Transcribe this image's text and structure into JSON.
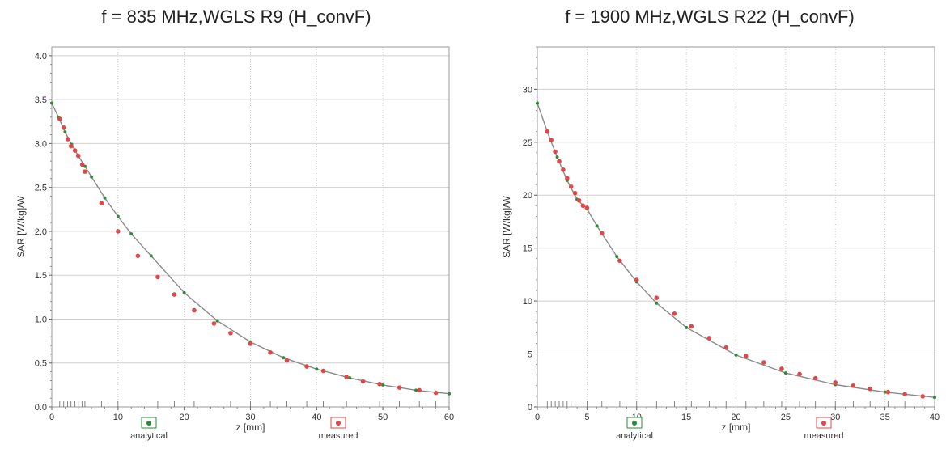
{
  "chart_data": [
    {
      "type": "scatter",
      "title": "f = 835 MHz,WGLS R9 (H_convF)",
      "xlabel": "z [mm]",
      "ylabel": "SAR [W/kg]/W",
      "xlim": [
        0,
        60
      ],
      "ylim": [
        0,
        4.1
      ],
      "x_ticks": [
        "0",
        "10",
        "20",
        "30",
        "40",
        "50",
        "60"
      ],
      "y_ticks": [
        "0.0",
        "0.5",
        "1.0",
        "1.5",
        "2.0",
        "2.5",
        "3.0",
        "3.5",
        "4.0"
      ],
      "grid": true,
      "legend_position": "bottom",
      "series": [
        {
          "name": "analytical",
          "color": "#2e8b3a",
          "x": [
            0,
            1,
            2,
            3,
            4,
            5,
            6,
            8,
            10,
            12,
            15,
            20,
            25,
            30,
            35,
            40,
            45,
            50,
            55,
            60
          ],
          "y": [
            3.46,
            3.3,
            3.13,
            2.99,
            2.86,
            2.74,
            2.62,
            2.38,
            2.17,
            1.97,
            1.72,
            1.3,
            0.98,
            0.74,
            0.56,
            0.43,
            0.33,
            0.25,
            0.19,
            0.15
          ]
        },
        {
          "name": "measured",
          "color": "#e04848",
          "x": [
            1.2,
            1.8,
            2.4,
            2.9,
            3.5,
            4.0,
            4.6,
            5.0,
            7.5,
            10.0,
            13.0,
            16.0,
            18.5,
            21.5,
            24.5,
            27.0,
            30.0,
            33.0,
            35.5,
            38.5,
            41.0,
            44.5,
            47.0,
            49.5,
            52.5,
            55.5,
            58.0
          ],
          "y": [
            3.28,
            3.18,
            3.05,
            2.97,
            2.92,
            2.86,
            2.76,
            2.68,
            2.32,
            2.0,
            1.72,
            1.48,
            1.28,
            1.1,
            0.95,
            0.84,
            0.72,
            0.62,
            0.53,
            0.46,
            0.41,
            0.34,
            0.29,
            0.26,
            0.22,
            0.19,
            0.16
          ]
        }
      ]
    },
    {
      "type": "scatter",
      "title": "f = 1900 MHz,WGLS R22 (H_convF)",
      "xlabel": "z [mm]",
      "ylabel": "SAR [W/kg]/W",
      "xlim": [
        0,
        40
      ],
      "ylim": [
        0,
        34
      ],
      "x_ticks": [
        "0",
        "5",
        "10",
        "15",
        "20",
        "25",
        "30",
        "35",
        "40"
      ],
      "y_ticks": [
        "0",
        "5",
        "10",
        "15",
        "20",
        "25",
        "30"
      ],
      "grid": true,
      "legend_position": "bottom",
      "series": [
        {
          "name": "analytical",
          "color": "#2e8b3a",
          "x": [
            0,
            1,
            2,
            3,
            4,
            5,
            6,
            8,
            10,
            12,
            15,
            20,
            25,
            30,
            35,
            40
          ],
          "y": [
            28.7,
            26.0,
            23.6,
            21.4,
            19.6,
            18.7,
            17.1,
            14.2,
            11.8,
            9.8,
            7.5,
            4.9,
            3.2,
            2.1,
            1.4,
            0.9
          ]
        },
        {
          "name": "measured",
          "color": "#e04848",
          "x": [
            1.0,
            1.4,
            1.8,
            2.2,
            2.6,
            3.0,
            3.4,
            3.8,
            4.2,
            4.6,
            5.0,
            6.5,
            8.3,
            10.0,
            12.0,
            13.8,
            15.5,
            17.3,
            19.0,
            21.0,
            22.8,
            24.6,
            26.4,
            28.0,
            30.0,
            31.8,
            33.5,
            35.3,
            37.0,
            38.8
          ],
          "y": [
            26.0,
            25.2,
            24.1,
            23.2,
            22.4,
            21.6,
            20.8,
            20.2,
            19.5,
            19.0,
            18.8,
            16.4,
            13.8,
            12.0,
            10.3,
            8.8,
            7.6,
            6.5,
            5.6,
            4.8,
            4.2,
            3.6,
            3.1,
            2.7,
            2.3,
            2.0,
            1.7,
            1.4,
            1.2,
            1.0
          ]
        }
      ]
    }
  ]
}
